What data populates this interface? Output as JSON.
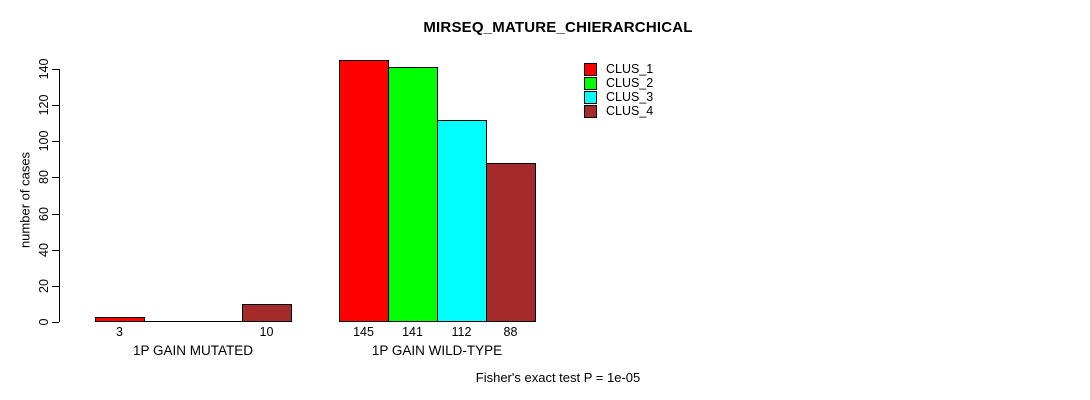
{
  "chart_data": {
    "type": "bar",
    "title": "MIRSEQ_MATURE_CHIERARCHICAL",
    "ylabel": "number of cases",
    "xlabel": "",
    "categories": [
      "1P GAIN MUTATED",
      "1P GAIN WILD-TYPE"
    ],
    "series": [
      {
        "name": "CLUS_1",
        "color": "#FF0000",
        "values": [
          3,
          145
        ]
      },
      {
        "name": "CLUS_2",
        "color": "#00FF00",
        "values": [
          0,
          141
        ]
      },
      {
        "name": "CLUS_3",
        "color": "#00FFFF",
        "values": [
          0,
          112
        ]
      },
      {
        "name": "CLUS_4",
        "color": "#A52A2A",
        "values": [
          10,
          88
        ]
      }
    ],
    "yticks": [
      0,
      20,
      40,
      60,
      80,
      100,
      120,
      140
    ],
    "ylim": [
      0,
      145
    ],
    "grid": false,
    "legend_position": "top-right",
    "hide_zero_labels": true,
    "annotation": "Fisher's exact test P = 1e-05"
  },
  "colors": {
    "text": "#000000",
    "background": "#FFFFFF",
    "axis": "#000000"
  }
}
